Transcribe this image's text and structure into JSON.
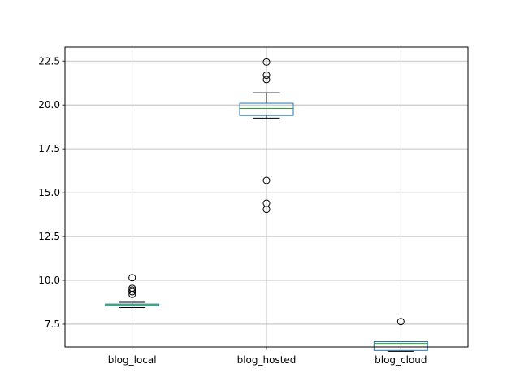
{
  "chart_data": {
    "type": "boxplot",
    "title": "",
    "xlabel": "",
    "ylabel": "",
    "ylim": [
      6.2,
      23.3
    ],
    "yticks": [
      7.5,
      10.0,
      12.5,
      15.0,
      17.5,
      20.0,
      22.5
    ],
    "ytick_labels": [
      "7.5",
      "10.0",
      "12.5",
      "15.0",
      "17.5",
      "20.0",
      "22.5"
    ],
    "grid": true,
    "categories": [
      "blog_local",
      "blog_hosted",
      "blog_cloud"
    ],
    "boxes": [
      {
        "name": "blog_local",
        "whisker_low": 8.45,
        "q1": 8.55,
        "median": 8.6,
        "q3": 8.65,
        "whisker_high": 8.75,
        "outliers": [
          10.15,
          9.55,
          9.45,
          9.35,
          9.2
        ]
      },
      {
        "name": "blog_hosted",
        "whisker_low": 19.25,
        "q1": 19.4,
        "median": 19.8,
        "q3": 20.1,
        "whisker_high": 20.7,
        "outliers": [
          22.45,
          21.7,
          21.45,
          15.7,
          14.4,
          14.05
        ]
      },
      {
        "name": "blog_cloud",
        "whisker_low": 5.95,
        "q1": 6.0,
        "median": 6.4,
        "q3": 6.5,
        "whisker_high": 6.5,
        "outliers": [
          7.65
        ]
      }
    ],
    "colors": {
      "box": "#1f77b4",
      "median": "#2ca02c",
      "whisker": "#000000",
      "outlier_edge": "#000000",
      "grid": "#b0b0b0"
    }
  }
}
